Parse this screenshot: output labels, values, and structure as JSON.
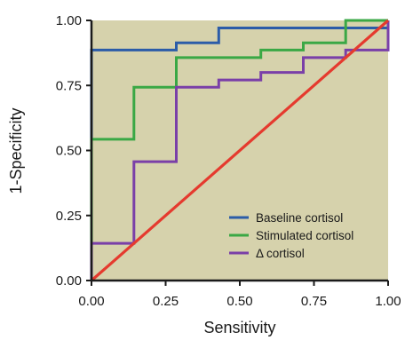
{
  "chart_data": {
    "type": "line",
    "title": "",
    "xlabel": "Sensitivity",
    "ylabel": "1-Specificity",
    "xlim": [
      0,
      1
    ],
    "ylim": [
      0,
      1
    ],
    "x_ticks": [
      "0.00",
      "0.25",
      "0.50",
      "0.75",
      "1.00"
    ],
    "y_ticks": [
      "0.00",
      "0.25",
      "0.50",
      "0.75",
      "1.00"
    ],
    "grid": false,
    "plot_background": "#d6d2ac",
    "legend_position": "bottom-right",
    "series": [
      {
        "name": "Baseline cortisol",
        "color": "#2b5ca8",
        "x": [
          0,
          0,
          0.286,
          0.286,
          0.429,
          0.429,
          1.0
        ],
        "y": [
          0,
          0.886,
          0.886,
          0.914,
          0.914,
          0.971,
          0.971
        ]
      },
      {
        "name": "Stimulated cortisol",
        "color": "#3aa845",
        "x": [
          0,
          0,
          0.143,
          0.143,
          0.286,
          0.286,
          0.571,
          0.571,
          0.714,
          0.714,
          0.857,
          0.857,
          1.0,
          1.0
        ],
        "y": [
          0,
          0.543,
          0.543,
          0.743,
          0.743,
          0.857,
          0.857,
          0.886,
          0.886,
          0.914,
          0.914,
          1.0,
          1.0,
          1.0
        ]
      },
      {
        "name": "Δ cortisol",
        "color": "#7a3fa8",
        "x": [
          0,
          0,
          0.143,
          0.143,
          0.286,
          0.286,
          0.429,
          0.429,
          0.571,
          0.571,
          0.714,
          0.714,
          0.857,
          0.857,
          1.0,
          1.0
        ],
        "y": [
          0,
          0.143,
          0.143,
          0.457,
          0.457,
          0.743,
          0.743,
          0.771,
          0.771,
          0.8,
          0.8,
          0.857,
          0.857,
          0.886,
          0.886,
          1.0
        ]
      }
    ],
    "reference_line": {
      "color": "#e53a2e",
      "x": [
        0,
        1
      ],
      "y": [
        0,
        1
      ]
    }
  }
}
